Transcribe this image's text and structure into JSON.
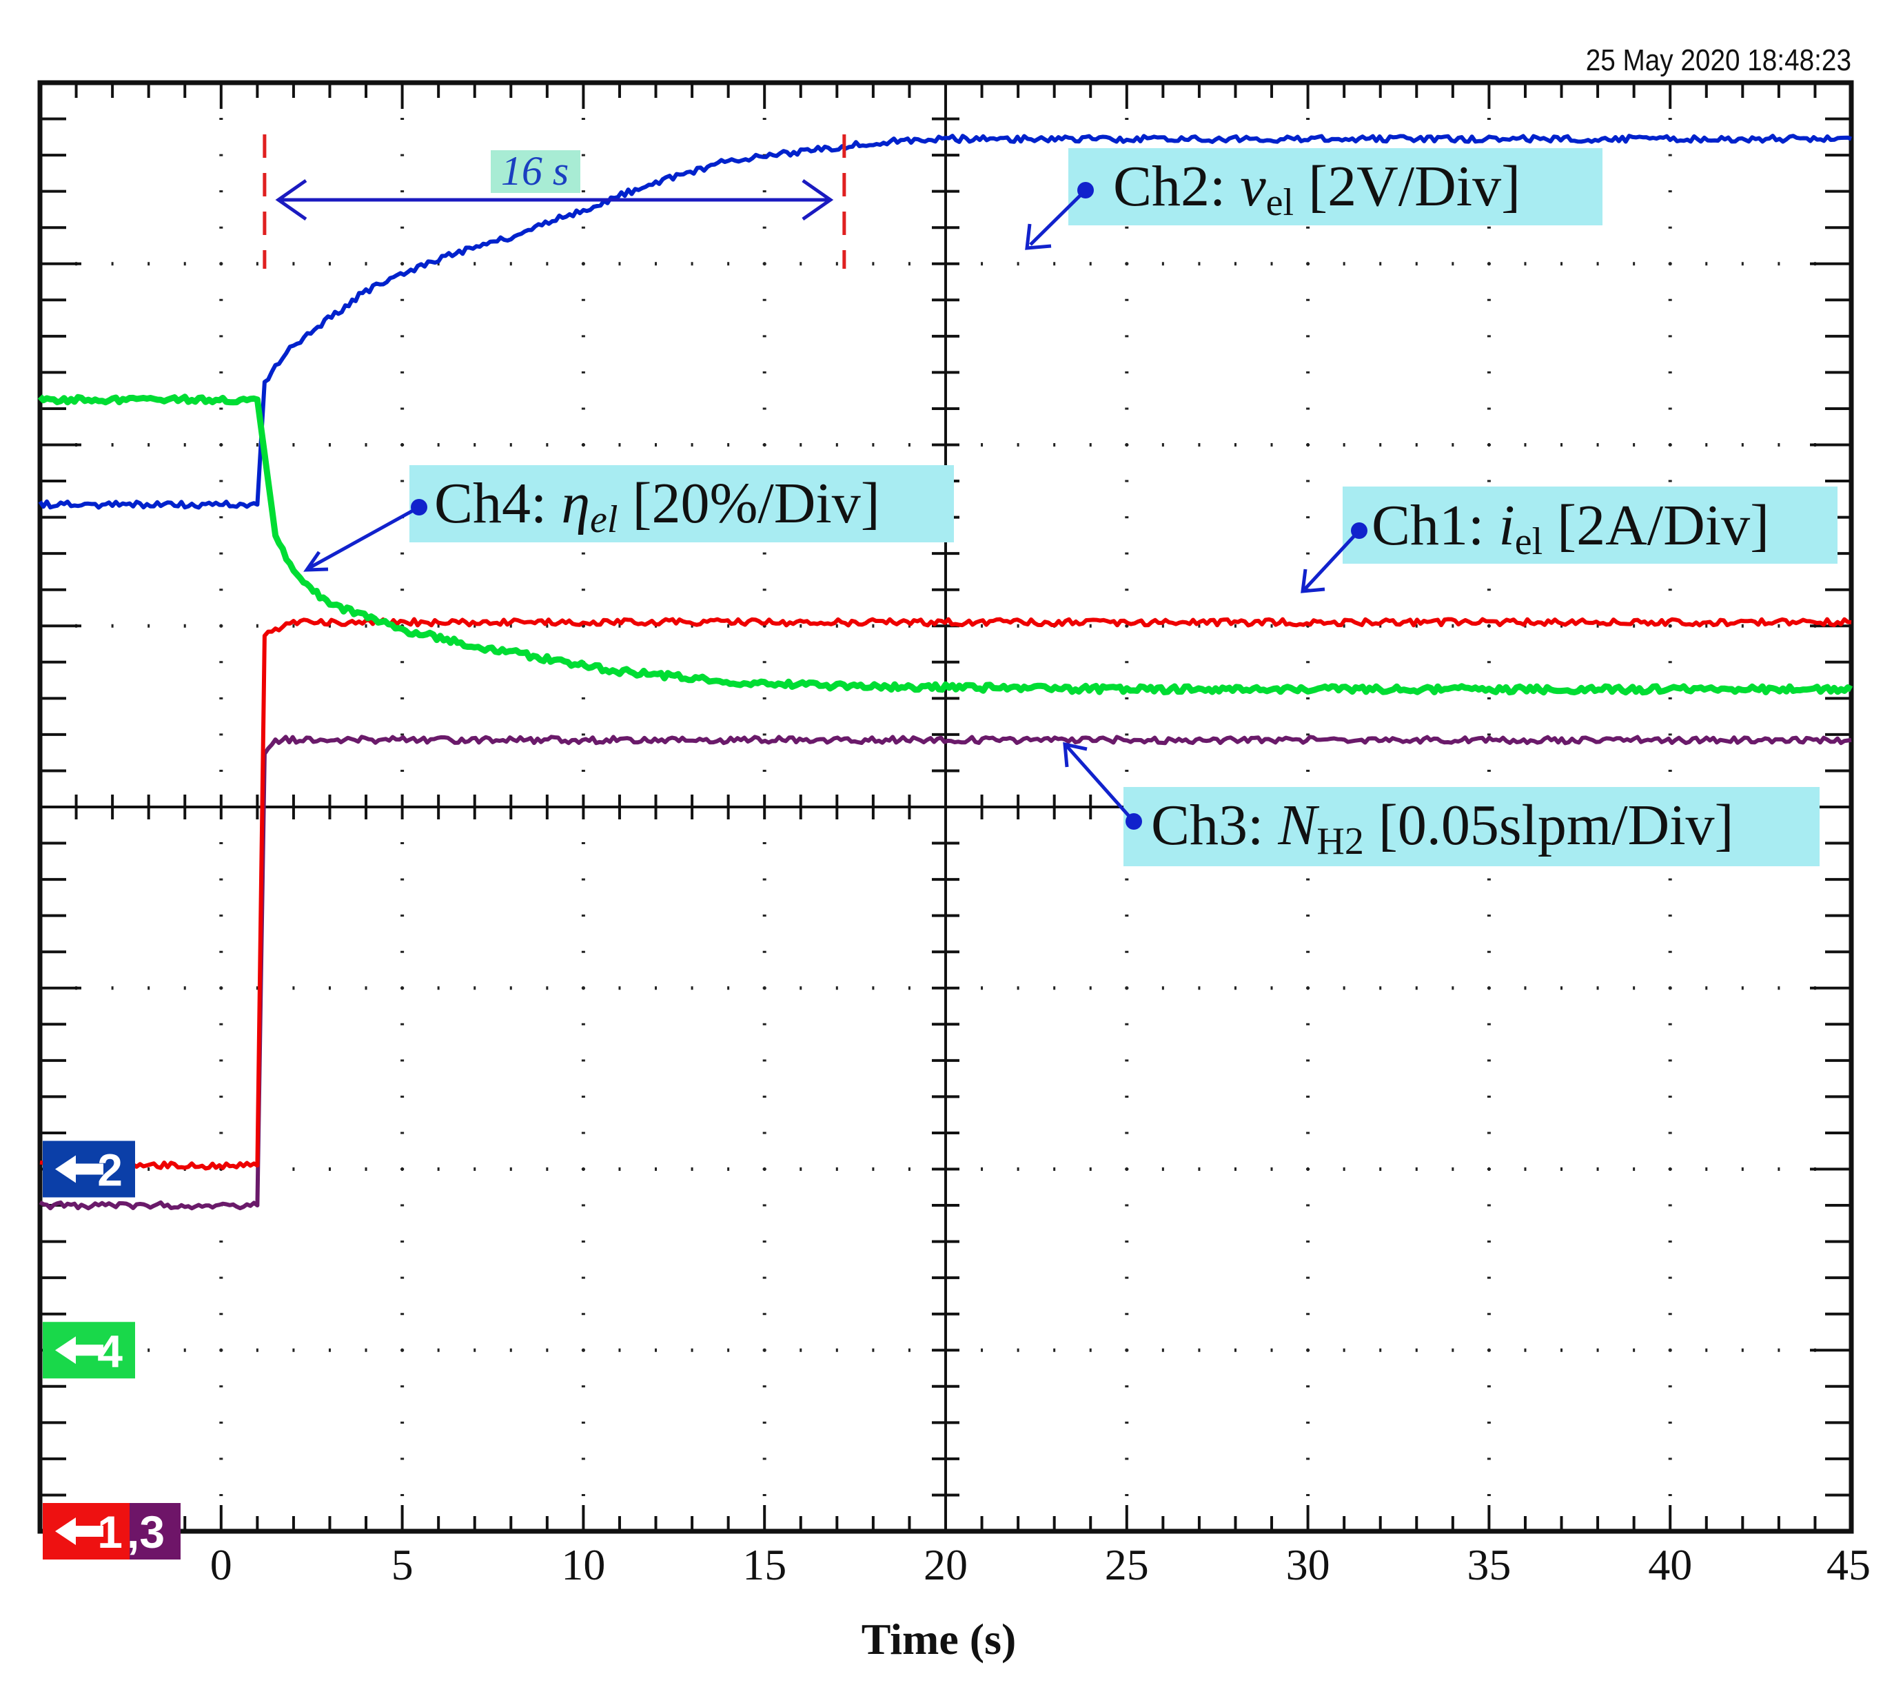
{
  "timestamp": "25 May 2020  18:48:23",
  "chart_data": {
    "type": "line",
    "title": "",
    "xlabel": "Time (s)",
    "ylabel": "",
    "xlim": [
      -5,
      45
    ],
    "ylim_div": [
      -4,
      4
    ],
    "x_ticks": [
      0,
      5,
      10,
      15,
      20,
      25,
      30,
      35,
      40,
      45
    ],
    "grid": "dotted, 10 x 8 divisions",
    "series": [
      {
        "channel": "Ch2",
        "name": "Ch2: vel [2V/Div]",
        "color": "#0022cc",
        "x": [
          -5,
          1.0,
          1.2,
          2,
          4,
          6,
          8,
          10,
          12,
          14,
          16,
          18,
          20,
          25,
          30,
          35,
          40,
          45
        ],
        "div": [
          1.67,
          1.67,
          2.35,
          2.55,
          2.85,
          3.03,
          3.15,
          3.3,
          3.45,
          3.57,
          3.62,
          3.67,
          3.69,
          3.69,
          3.69,
          3.69,
          3.69,
          3.69
        ]
      },
      {
        "channel": "Ch4",
        "name": "Ch4: ηel [20%/Div]",
        "color": "#00dd33",
        "x": [
          -5,
          1.0,
          1.2,
          1.5,
          2,
          3,
          5,
          7,
          9,
          11,
          13,
          15,
          17,
          20,
          25,
          30,
          35,
          40,
          45
        ],
        "div": [
          2.25,
          2.25,
          1.95,
          1.5,
          1.3,
          1.12,
          0.98,
          0.89,
          0.82,
          0.75,
          0.71,
          0.68,
          0.67,
          0.66,
          0.65,
          0.65,
          0.65,
          0.65,
          0.65
        ]
      },
      {
        "channel": "Ch1",
        "name": "Ch1: iel [2A/Div]",
        "color": "#ee0000",
        "x": [
          -5,
          1.0,
          1.2,
          2,
          45
        ],
        "div": [
          -1.98,
          -1.98,
          0.95,
          1.02,
          1.02
        ]
      },
      {
        "channel": "Ch3",
        "name": "Ch3: NH2 [0.05slpm/Div]",
        "color": "#6a1a6a",
        "x": [
          -5,
          1.0,
          1.2,
          1.5,
          45
        ],
        "div": [
          -2.2,
          -2.2,
          0.3,
          0.37,
          0.37
        ]
      }
    ],
    "annotations": [
      {
        "label": "16 s",
        "from": 1.2,
        "to": 17.2
      },
      {
        "label": "Ch2: ",
        "var": "v",
        "sub": "el",
        "unit": " [2V/Div]",
        "series": "Ch2"
      },
      {
        "label": "Ch4: ",
        "var": "η",
        "sub": "el",
        "unit": " [20%/Div]",
        "series": "Ch4"
      },
      {
        "label": "Ch1: ",
        "var": "i",
        "sub": "el",
        "unit": " [2A/Div]",
        "series": "Ch1"
      },
      {
        "label": "Ch3: ",
        "var": "N",
        "sub": "H2",
        "unit": " [0.05slpm/Div]",
        "series": "Ch3"
      }
    ],
    "markers": [
      {
        "label": "2",
        "color": "#0b3fa8",
        "level": -2
      },
      {
        "label": "4",
        "color": "#19d84a",
        "level": -3
      },
      {
        "label": "1",
        "color": "#ee1111",
        "level": -4
      },
      {
        "label": ",3",
        "color": "#6e1568",
        "level": -4
      }
    ]
  }
}
